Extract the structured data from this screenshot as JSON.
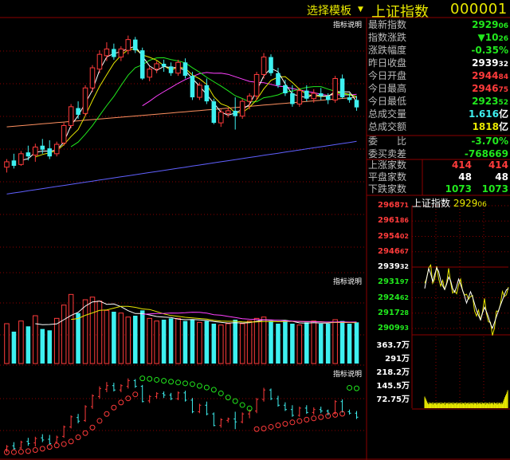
{
  "header": {
    "template_selector": "选择模板",
    "dropdown_glyph": "▼",
    "index_name": "上证指数",
    "index_code": "000001"
  },
  "panels": {
    "indicator_label": "指标说明"
  },
  "quote": {
    "latest_index": {
      "label": "最新指数",
      "int": "2929",
      "dec": "06"
    },
    "change": {
      "label": "指数涨跌",
      "int": "▼10",
      "dec": "26"
    },
    "change_pct": {
      "label": "涨跌幅度",
      "value": "-0.35%"
    },
    "prev_close": {
      "label": "昨日收盘",
      "int": "2939",
      "dec": "32"
    },
    "open": {
      "label": "今日开盘",
      "int": "2944",
      "dec": "84"
    },
    "high": {
      "label": "今日最高",
      "int": "2946",
      "dec": "75"
    },
    "low": {
      "label": "今日最低",
      "int": "2923",
      "dec": "52"
    },
    "volume": {
      "label": "总成交量",
      "value": "1.616",
      "unit": "亿"
    },
    "amount": {
      "label": "总成交额",
      "value": "1818",
      "unit": "亿"
    },
    "bid_ratio": {
      "label": "委　　比",
      "value": "-3.70%"
    },
    "bid_diff": {
      "label": "委买卖差",
      "value": "-768669"
    },
    "rise": {
      "label": "上涨家数",
      "v1": "414",
      "v2": "414"
    },
    "flat": {
      "label": "平盘家数",
      "v1": "48",
      "v2": "48"
    },
    "fall": {
      "label": "下跌家数",
      "v1": "1073",
      "v2": "1073"
    }
  },
  "mini_chart": {
    "title": "上证指数",
    "value": "2929",
    "value_dec": "06",
    "price_labels": [
      {
        "int": "2968",
        "dec": "71",
        "color": "#ff3b3b"
      },
      {
        "int": "2961",
        "dec": "86",
        "color": "#ff3b3b"
      },
      {
        "int": "2954",
        "dec": "02",
        "color": "#ff3b3b"
      },
      {
        "int": "2946",
        "dec": "67",
        "color": "#ff3b3b"
      },
      {
        "int": "2939",
        "dec": "32",
        "color": "#ffffff"
      },
      {
        "int": "2931",
        "dec": "97",
        "color": "#21e81d"
      },
      {
        "int": "2924",
        "dec": "62",
        "color": "#21e81d"
      },
      {
        "int": "2917",
        "dec": "28",
        "color": "#21e81d"
      },
      {
        "int": "2909",
        "dec": "93",
        "color": "#21e81d"
      }
    ],
    "volume_labels": [
      "363.7万",
      "291万",
      "218.2万",
      "145.5万",
      "72.75万"
    ]
  },
  "colors": {
    "up": "#ff3b3b",
    "down": "#3ef0f0",
    "ma5": "#ffffff",
    "ma10": "#e8e800",
    "ma20": "#ff40ff",
    "ma30": "#21e81d",
    "ma60": "#ff9060",
    "ma120": "#6060ff",
    "grid": "#8b0000"
  },
  "chart_data": [
    {
      "type": "candlestick",
      "candles": [
        {
          "o": 2840,
          "h": 2852,
          "l": 2832,
          "c": 2848
        },
        {
          "o": 2850,
          "h": 2860,
          "l": 2838,
          "c": 2842
        },
        {
          "o": 2844,
          "h": 2864,
          "l": 2842,
          "c": 2860
        },
        {
          "o": 2862,
          "h": 2872,
          "l": 2850,
          "c": 2856
        },
        {
          "o": 2858,
          "h": 2875,
          "l": 2848,
          "c": 2870
        },
        {
          "o": 2872,
          "h": 2882,
          "l": 2860,
          "c": 2866
        },
        {
          "o": 2868,
          "h": 2880,
          "l": 2852,
          "c": 2856
        },
        {
          "o": 2860,
          "h": 2878,
          "l": 2856,
          "c": 2874
        },
        {
          "o": 2876,
          "h": 2906,
          "l": 2872,
          "c": 2902
        },
        {
          "o": 2902,
          "h": 2934,
          "l": 2898,
          "c": 2930
        },
        {
          "o": 2928,
          "h": 2938,
          "l": 2912,
          "c": 2918
        },
        {
          "o": 2920,
          "h": 2962,
          "l": 2916,
          "c": 2958
        },
        {
          "o": 2958,
          "h": 2992,
          "l": 2952,
          "c": 2988
        },
        {
          "o": 2986,
          "h": 3014,
          "l": 2980,
          "c": 3008
        },
        {
          "o": 3006,
          "h": 3026,
          "l": 2998,
          "c": 3016
        },
        {
          "o": 3016,
          "h": 3024,
          "l": 3000,
          "c": 3004
        },
        {
          "o": 3004,
          "h": 3020,
          "l": 2998,
          "c": 3016
        },
        {
          "o": 3014,
          "h": 3036,
          "l": 3008,
          "c": 3030
        },
        {
          "o": 3030,
          "h": 3034,
          "l": 3010,
          "c": 3014
        },
        {
          "o": 3014,
          "h": 3018,
          "l": 2970,
          "c": 2972
        },
        {
          "o": 2974,
          "h": 2990,
          "l": 2968,
          "c": 2986
        },
        {
          "o": 2986,
          "h": 2998,
          "l": 2980,
          "c": 2994
        },
        {
          "o": 2994,
          "h": 3000,
          "l": 2982,
          "c": 2990
        },
        {
          "o": 2990,
          "h": 2996,
          "l": 2976,
          "c": 2980
        },
        {
          "o": 2980,
          "h": 3000,
          "l": 2976,
          "c": 2996
        },
        {
          "o": 2996,
          "h": 3002,
          "l": 2972,
          "c": 2976
        },
        {
          "o": 2976,
          "h": 2982,
          "l": 2940,
          "c": 2944
        },
        {
          "o": 2944,
          "h": 2966,
          "l": 2940,
          "c": 2962
        },
        {
          "o": 2962,
          "h": 2972,
          "l": 2934,
          "c": 2938
        },
        {
          "o": 2938,
          "h": 2942,
          "l": 2904,
          "c": 2906
        },
        {
          "o": 2906,
          "h": 2926,
          "l": 2900,
          "c": 2922
        },
        {
          "o": 2920,
          "h": 2928,
          "l": 2914,
          "c": 2924
        },
        {
          "o": 2924,
          "h": 2944,
          "l": 2896,
          "c": 2916
        },
        {
          "o": 2916,
          "h": 2942,
          "l": 2912,
          "c": 2938
        },
        {
          "o": 2938,
          "h": 2950,
          "l": 2926,
          "c": 2946
        },
        {
          "o": 2946,
          "h": 2982,
          "l": 2940,
          "c": 2978
        },
        {
          "o": 2978,
          "h": 3010,
          "l": 2972,
          "c": 3004
        },
        {
          "o": 3004,
          "h": 3008,
          "l": 2976,
          "c": 2980
        },
        {
          "o": 2980,
          "h": 2988,
          "l": 2958,
          "c": 2962
        },
        {
          "o": 2962,
          "h": 2970,
          "l": 2946,
          "c": 2950
        },
        {
          "o": 2950,
          "h": 2962,
          "l": 2930,
          "c": 2934
        },
        {
          "o": 2934,
          "h": 2958,
          "l": 2930,
          "c": 2954
        },
        {
          "o": 2954,
          "h": 2962,
          "l": 2938,
          "c": 2942
        },
        {
          "o": 2942,
          "h": 2956,
          "l": 2936,
          "c": 2950
        },
        {
          "o": 2950,
          "h": 2958,
          "l": 2940,
          "c": 2946
        },
        {
          "o": 2946,
          "h": 2950,
          "l": 2934,
          "c": 2940
        },
        {
          "o": 2940,
          "h": 2976,
          "l": 2936,
          "c": 2972
        },
        {
          "o": 2972,
          "h": 2978,
          "l": 2942,
          "c": 2944
        },
        {
          "o": 2944,
          "h": 2950,
          "l": 2936,
          "c": 2940
        },
        {
          "o": 2940,
          "h": 2946,
          "l": 2924,
          "c": 2929
        }
      ],
      "volumes": [
        150,
        120,
        160,
        140,
        180,
        130,
        125,
        170,
        220,
        260,
        190,
        240,
        250,
        235,
        200,
        195,
        190,
        175,
        180,
        200,
        170,
        160,
        165,
        170,
        170,
        160,
        165,
        155,
        160,
        150,
        145,
        150,
        165,
        150,
        160,
        170,
        175,
        160,
        150,
        160,
        150,
        145,
        155,
        160,
        150,
        150,
        165,
        160,
        150,
        155
      ]
    },
    {
      "type": "line",
      "points": [
        2929.06,
        2934.2,
        2938.5,
        2936.1,
        2932.4,
        2935.8,
        2939.0,
        2937.2,
        2933.0,
        2930.4,
        2928.6,
        2931.2,
        2934.5,
        2932.8,
        2929.1,
        2927.3,
        2930.0,
        2933.6,
        2931.0,
        2928.2,
        2925.4,
        2922.1,
        2924.8,
        2927.5,
        2925.0,
        2921.8,
        2918.6,
        2916.2,
        2914.0,
        2917.3,
        2920.1,
        2918.0,
        2915.4,
        2912.2,
        2910.0,
        2912.8,
        2915.6,
        2918.3,
        2921.0,
        2923.5,
        2926.2,
        2928.4,
        2929.06
      ],
      "ylim": [
        2909.93,
        2968.71
      ],
      "volume_ylim": [
        0,
        363.7
      ]
    }
  ]
}
